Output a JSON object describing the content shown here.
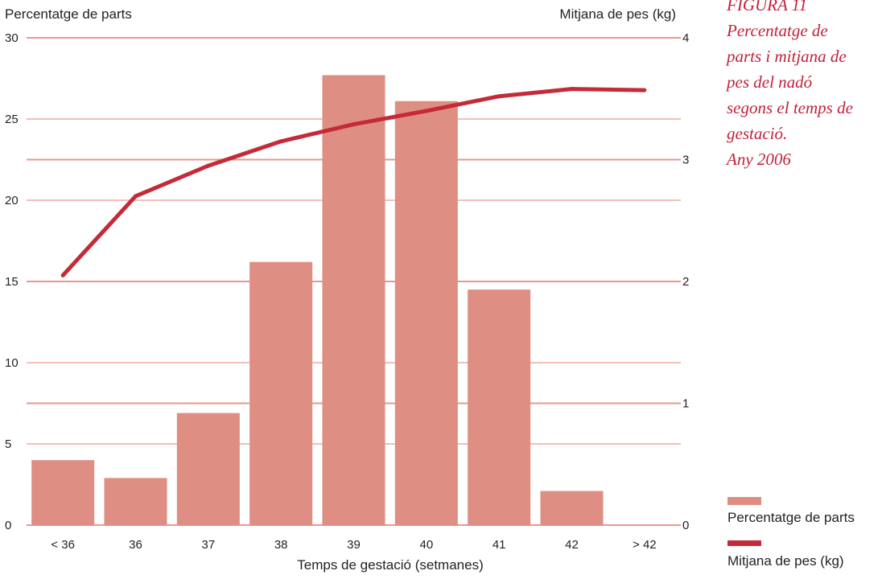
{
  "figure": {
    "caption_lines": [
      "FIGURA 11",
      "Percentatge de",
      "parts i mitjana de",
      "pes del nadó",
      "segons el temps de",
      "gestació.",
      "Any 2006"
    ]
  },
  "colors": {
    "bar": "#de8e82",
    "line": "#c42a38",
    "grid_left": "#f0c0b8",
    "grid_right": "#e59a8e",
    "caption": "#c0223a"
  },
  "legend": {
    "bar_label": "Percentatge de parts",
    "line_label": "Mitjana de pes (kg)"
  },
  "chart_data": {
    "type": "bar",
    "title": "",
    "xlabel": "Temps de gestació (setmanes)",
    "ylabel_left": "Percentatge de parts",
    "ylabel_right": "Mitjana de pes (kg)",
    "categories": [
      "< 36",
      "36",
      "37",
      "38",
      "39",
      "40",
      "41",
      "42",
      "> 42"
    ],
    "ylim_left": [
      0,
      30
    ],
    "ylim_right": [
      0,
      4
    ],
    "yticks_left": [
      "0",
      "5",
      "10",
      "15",
      "20",
      "25",
      "30"
    ],
    "yticks_right": [
      "0",
      "1",
      "2",
      "3",
      "4"
    ],
    "series": [
      {
        "name": "Percentatge de parts",
        "type": "bar",
        "axis": "left",
        "values": [
          4.0,
          2.9,
          6.9,
          16.2,
          27.7,
          26.1,
          14.5,
          2.1,
          null
        ]
      },
      {
        "name": "Mitjana de pes (kg)",
        "type": "line",
        "axis": "right",
        "values": [
          2.05,
          2.7,
          2.95,
          3.15,
          3.29,
          3.4,
          3.52,
          3.58,
          3.57
        ]
      }
    ],
    "grid": true,
    "legend_position": "bottom-right"
  }
}
